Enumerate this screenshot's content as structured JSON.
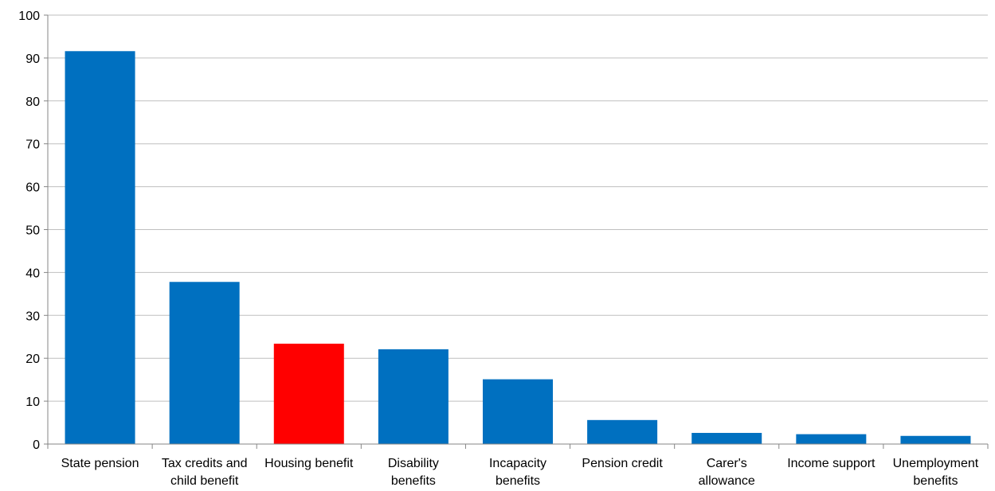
{
  "chart_data": {
    "type": "bar",
    "categories": [
      [
        "State pension"
      ],
      [
        "Tax credits and",
        "child benefit"
      ],
      [
        "Housing benefit"
      ],
      [
        "Disability",
        "benefits"
      ],
      [
        "Incapacity",
        "benefits"
      ],
      [
        "Pension credit"
      ],
      [
        "Carer's",
        "allowance"
      ],
      [
        "Income support"
      ],
      [
        "Unemployment",
        "benefits"
      ]
    ],
    "values": [
      91.6,
      37.8,
      23.4,
      22.1,
      15.1,
      5.6,
      2.6,
      2.3,
      1.9
    ],
    "highlight_index": 2,
    "ylim": [
      0,
      100
    ],
    "yticks": [
      0,
      10,
      20,
      30,
      40,
      50,
      60,
      70,
      80,
      90,
      100
    ],
    "grid": true,
    "colors": {
      "bar": "#0070C0",
      "highlight": "#FF0000",
      "grid": "#BFBFBF",
      "axis": "#868686"
    }
  }
}
